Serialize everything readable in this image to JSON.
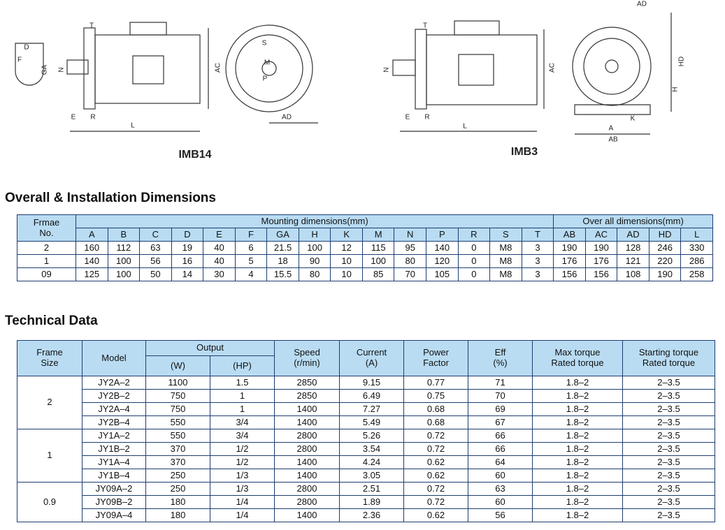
{
  "drawings": [
    {
      "caption": "IMB14",
      "labels": [
        "T",
        "D",
        "F",
        "GA",
        "N",
        "AC",
        "E",
        "R",
        "L",
        "AD",
        "S",
        "M",
        "P"
      ]
    },
    {
      "caption": "IMB3",
      "labels": [
        "T",
        "N",
        "AC",
        "E",
        "R",
        "L",
        "AD",
        "HD",
        "H",
        "K",
        "A",
        "AB"
      ]
    }
  ],
  "dimensions": {
    "title": "Overall & Installation Dimensions",
    "frame_header": [
      "Frmae",
      "No."
    ],
    "mounting_header": "Mounting dimensions(mm)",
    "overall_header": "Over all dimensions(mm)",
    "mounting_columns": [
      "A",
      "B",
      "C",
      "D",
      "E",
      "F",
      "GA",
      "H",
      "K",
      "M",
      "N",
      "P",
      "R",
      "S",
      "T"
    ],
    "overall_columns": [
      "AB",
      "AC",
      "AD",
      "HD",
      "L"
    ],
    "rows": [
      [
        "2",
        "160",
        "112",
        "63",
        "19",
        "40",
        "6",
        "21.5",
        "100",
        "12",
        "115",
        "95",
        "140",
        "0",
        "M8",
        "3",
        "190",
        "190",
        "128",
        "246",
        "330"
      ],
      [
        "1",
        "140",
        "100",
        "56",
        "16",
        "40",
        "5",
        "18",
        "90",
        "10",
        "100",
        "80",
        "120",
        "0",
        "M8",
        "3",
        "176",
        "176",
        "121",
        "220",
        "286"
      ],
      [
        "09",
        "125",
        "100",
        "50",
        "14",
        "30",
        "4",
        "15.5",
        "80",
        "10",
        "85",
        "70",
        "105",
        "0",
        "M8",
        "3",
        "156",
        "156",
        "108",
        "190",
        "258"
      ]
    ]
  },
  "technical": {
    "title": "Technical Data",
    "headers": {
      "frame": [
        "Frame",
        "Size"
      ],
      "model": "Model",
      "output": "Output",
      "output_units": [
        "(W)",
        "(HP)"
      ],
      "speed": [
        "Speed",
        "(r/min)"
      ],
      "current": [
        "Current",
        "(A)"
      ],
      "power_factor": [
        "Power",
        "Factor"
      ],
      "eff": [
        "Eff",
        "(%)"
      ],
      "max_torque": [
        "Max torque",
        "Rated torque"
      ],
      "starting_torque": [
        "Starting torque",
        "Rated torque"
      ]
    },
    "groups": [
      {
        "frame": "2",
        "rows": [
          [
            "JY2A–2",
            "1100",
            "1.5",
            "2850",
            "9.15",
            "0.77",
            "71",
            "1.8–2",
            "2–3.5"
          ],
          [
            "JY2B–2",
            "750",
            "1",
            "2850",
            "6.49",
            "0.75",
            "70",
            "1.8–2",
            "2–3.5"
          ],
          [
            "JY2A–4",
            "750",
            "1",
            "1400",
            "7.27",
            "0.68",
            "69",
            "1.8–2",
            "2–3.5"
          ],
          [
            "JY2B–4",
            "550",
            "3/4",
            "1400",
            "5.49",
            "0.68",
            "67",
            "1.8–2",
            "2–3.5"
          ]
        ]
      },
      {
        "frame": "1",
        "rows": [
          [
            "JY1A–2",
            "550",
            "3/4",
            "2800",
            "5.26",
            "0.72",
            "66",
            "1.8–2",
            "2–3.5"
          ],
          [
            "JY1B–2",
            "370",
            "1/2",
            "2800",
            "3.54",
            "0.72",
            "66",
            "1.8–2",
            "2–3.5"
          ],
          [
            "JY1A–4",
            "370",
            "1/2",
            "1400",
            "4.24",
            "0.62",
            "64",
            "1.8–2",
            "2–3.5"
          ],
          [
            "JY1B–4",
            "250",
            "1/3",
            "1400",
            "3.05",
            "0.62",
            "60",
            "1.8–2",
            "2–3.5"
          ]
        ]
      },
      {
        "frame": "0.9",
        "rows": [
          [
            "JY09A–2",
            "250",
            "1/3",
            "2800",
            "2.51",
            "0.72",
            "63",
            "1.8–2",
            "2–3.5"
          ],
          [
            "JY09B–2",
            "180",
            "1/4",
            "2800",
            "1.89",
            "0.72",
            "60",
            "1.8–2",
            "2–3.5"
          ],
          [
            "JY09A–4",
            "180",
            "1/4",
            "1400",
            "2.36",
            "0.62",
            "56",
            "1.8–2",
            "2–3.5"
          ]
        ]
      }
    ]
  }
}
